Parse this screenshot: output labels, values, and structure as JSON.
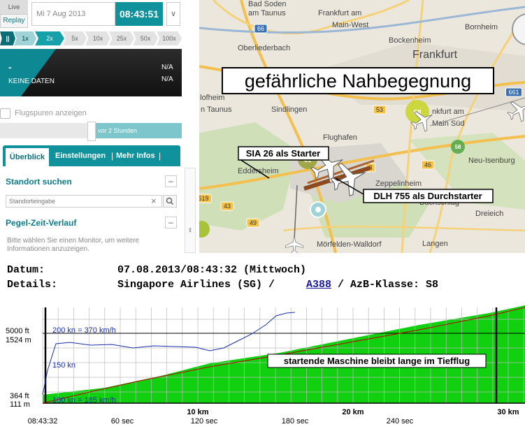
{
  "controls": {
    "live": "Live",
    "replay": "Replay",
    "date": "Mi 7 Aug 2013",
    "time": "08:43:51",
    "speeds": [
      "||",
      "1x",
      "2x",
      "5x",
      "10x",
      "25x",
      "50x",
      "100x"
    ]
  },
  "status": {
    "dash": "-",
    "label": "KEINE DATEN",
    "values": [
      "N/A",
      "N/A"
    ]
  },
  "tracks": {
    "checkbox": "Flugspuren anzeigen",
    "slider": "vor 2 Stunden"
  },
  "tabs": [
    "Überblick",
    "Einstellungen",
    "Mehr Infos"
  ],
  "location": {
    "title": "Standort suchen",
    "placeholder": "Standorteingabe"
  },
  "level": {
    "title": "Pegel-Zeit-Verlauf",
    "text": "Bitte wählen Sie einen Monitor, um weitere Informationen anzuzeigen."
  },
  "map": {
    "places": [
      "Bad Soden",
      "am Taunus",
      "Frankfurt am",
      "Main-West",
      "Bornheim",
      "Bockenheim",
      "Frankfurt",
      "Oberliederbach",
      "lofheim",
      "n Taunus",
      "Sindlingen",
      "Flughafen",
      "Eddersheim",
      "nkfurt am",
      "Main Süd",
      "Neu-Isenburg",
      "Zeppelinheim",
      "Buchschlag",
      "Mörfelden-Walldorf",
      "Langen",
      "Dreieich"
    ],
    "routes": [
      "66",
      "40",
      "661",
      "53",
      "43",
      "519",
      "49",
      "46",
      "3"
    ],
    "markers": [
      "68",
      "61",
      "58"
    ],
    "annotations": [
      "gefährliche Nahbegegnung",
      "SIA 26 als Starter",
      "DLH 755 als Durchstarter"
    ]
  },
  "details": {
    "date_label": "Datum:",
    "date": "07.08.2013/08:43:32 (Mittwoch)",
    "details_label": "Details:",
    "airline": "Singapore Airlines (SG) /",
    "aircraft": "A388",
    "class": "/ AzB-Klasse: S8"
  },
  "profile": {
    "altitude_labels": [
      "5000 ft",
      "1524 m",
      "364 ft",
      "111 m"
    ],
    "speed_labels": [
      "200 kn = 370 km/h",
      "150 kn",
      "100 kn = 185 km/h"
    ],
    "distance_labels": [
      "10 km",
      "20 km",
      "30 km"
    ],
    "time_labels": [
      "08:43:32",
      "60 sec",
      "120 sec",
      "180 sec",
      "240 sec"
    ],
    "annotation": "startende Maschine bleibt lange im Tiefflug"
  }
}
